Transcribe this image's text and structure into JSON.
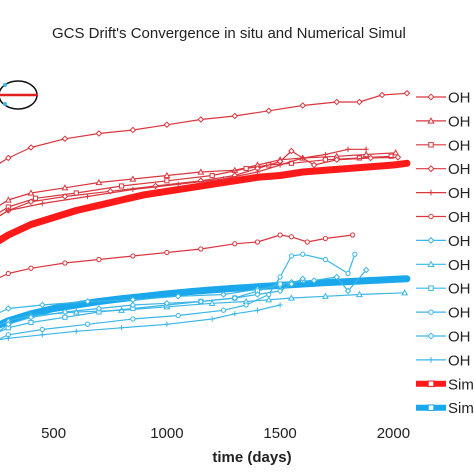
{
  "chart_data": {
    "type": "line",
    "title": "GCS Drift's Convergence in situ and Numerical Simul",
    "xlabel": "time (days)",
    "xlim": [
      250,
      2100
    ],
    "ylim": [
      0,
      1
    ],
    "x_ticks": [
      500,
      1000,
      1500,
      2000
    ],
    "colors": {
      "in_situ_red": "#d9363e",
      "in_situ_blue": "#3bb6e6",
      "sim_red": "#ff1a1a",
      "sim_blue": "#1aa7ec"
    },
    "series": [
      {
        "name": "OH",
        "color": "#d9363e",
        "marker": "diamond",
        "width": 1.2,
        "x": [
          250,
          300,
          400,
          550,
          700,
          850,
          1000,
          1150,
          1300,
          1450,
          1600,
          1750,
          1850,
          1950,
          2060
        ],
        "y": [
          0.7,
          0.72,
          0.75,
          0.775,
          0.79,
          0.8,
          0.815,
          0.83,
          0.84,
          0.855,
          0.87,
          0.88,
          0.88,
          0.9,
          0.905
        ]
      },
      {
        "name": "OH",
        "color": "#d9363e",
        "marker": "triangle",
        "width": 1.2,
        "x": [
          250,
          300,
          400,
          550,
          700,
          850,
          1000,
          1150,
          1300,
          1400,
          1500,
          1600,
          1750,
          1880,
          2010
        ],
        "y": [
          0.58,
          0.6,
          0.62,
          0.635,
          0.65,
          0.66,
          0.67,
          0.68,
          0.685,
          0.7,
          0.715,
          0.72,
          0.725,
          0.73,
          0.735
        ]
      },
      {
        "name": "OH",
        "color": "#d9363e",
        "marker": "square",
        "width": 1.2,
        "x": [
          250,
          300,
          420,
          600,
          800,
          1000,
          1200,
          1350,
          1450,
          1550,
          1700,
          1850,
          1990
        ],
        "y": [
          0.56,
          0.58,
          0.605,
          0.62,
          0.64,
          0.655,
          0.67,
          0.69,
          0.7,
          0.705,
          0.715,
          0.72,
          0.725
        ]
      },
      {
        "name": "OH",
        "color": "#d9363e",
        "marker": "diamond",
        "width": 1.2,
        "x": [
          250,
          300,
          400,
          550,
          750,
          950,
          1150,
          1300,
          1400,
          1500,
          1550,
          1650,
          1750,
          1900,
          2020
        ],
        "y": [
          0.55,
          0.57,
          0.595,
          0.61,
          0.625,
          0.64,
          0.655,
          0.67,
          0.69,
          0.71,
          0.74,
          0.7,
          0.715,
          0.72,
          0.722
        ]
      },
      {
        "name": "OH",
        "color": "#d9363e",
        "marker": "plus",
        "width": 1.2,
        "x": [
          250,
          300,
          450,
          650,
          850,
          1050,
          1250,
          1400,
          1500,
          1600,
          1700,
          1800,
          1880
        ],
        "y": [
          0.55,
          0.57,
          0.59,
          0.61,
          0.63,
          0.645,
          0.66,
          0.68,
          0.7,
          0.72,
          0.73,
          0.745,
          0.745
        ]
      },
      {
        "name": "OH",
        "color": "#d9363e",
        "marker": "circle",
        "width": 1.2,
        "x": [
          250,
          300,
          400,
          550,
          700,
          850,
          1000,
          1150,
          1300,
          1400,
          1500,
          1550,
          1620,
          1700,
          1820
        ],
        "y": [
          0.375,
          0.39,
          0.405,
          0.42,
          0.43,
          0.44,
          0.45,
          0.46,
          0.475,
          0.48,
          0.5,
          0.495,
          0.48,
          0.49,
          0.5
        ]
      },
      {
        "name": "OH",
        "color": "#3bb6e6",
        "marker": "diamond",
        "width": 1.2,
        "x": [
          250,
          300,
          450,
          650,
          850,
          1050,
          1250,
          1400,
          1500,
          1550,
          1650,
          1750,
          1800,
          1880
        ],
        "y": [
          0.275,
          0.29,
          0.3,
          0.31,
          0.315,
          0.325,
          0.33,
          0.345,
          0.355,
          0.365,
          0.37,
          0.38,
          0.34,
          0.4
        ]
      },
      {
        "name": "OH",
        "color": "#3bb6e6",
        "marker": "triangle",
        "width": 1.2,
        "x": [
          250,
          300,
          400,
          600,
          800,
          1000,
          1200,
          1350,
          1450,
          1550,
          1700,
          1850,
          2050
        ],
        "y": [
          0.24,
          0.255,
          0.27,
          0.28,
          0.285,
          0.295,
          0.305,
          0.31,
          0.315,
          0.32,
          0.325,
          0.33,
          0.335
        ]
      },
      {
        "name": "OH",
        "color": "#3bb6e6",
        "marker": "square",
        "width": 1.2,
        "x": [
          250,
          300,
          400,
          550,
          700,
          850,
          1000,
          1150,
          1300,
          1400,
          1500,
          1600
        ],
        "y": [
          0.22,
          0.235,
          0.25,
          0.265,
          0.28,
          0.29,
          0.3,
          0.31,
          0.32,
          0.34,
          0.36,
          0.37
        ]
      },
      {
        "name": "OH",
        "color": "#3bb6e6",
        "marker": "circle",
        "width": 1.2,
        "x": [
          250,
          300,
          450,
          650,
          850,
          1050,
          1250,
          1350,
          1450,
          1500,
          1550,
          1600,
          1700,
          1800,
          1830
        ],
        "y": [
          0.2,
          0.215,
          0.23,
          0.245,
          0.26,
          0.27,
          0.285,
          0.3,
          0.33,
          0.38,
          0.44,
          0.445,
          0.43,
          0.39,
          0.445
        ]
      },
      {
        "name": "OH",
        "color": "#3bb6e6",
        "marker": "diamond",
        "width": 1.2,
        "x": [
          250,
          300,
          400,
          550,
          700,
          850,
          1000,
          1150,
          1300,
          1400,
          1500,
          1550,
          1600
        ],
        "y": [
          0.22,
          0.245,
          0.265,
          0.28,
          0.29,
          0.3,
          0.305,
          0.31,
          0.32,
          0.33,
          0.34,
          0.36,
          0.375
        ]
      },
      {
        "name": "OH",
        "color": "#3bb6e6",
        "marker": "plus",
        "width": 1.2,
        "x": [
          250,
          300,
          450,
          600,
          800,
          1000,
          1200,
          1300,
          1400,
          1500
        ],
        "y": [
          0.2,
          0.205,
          0.215,
          0.225,
          0.235,
          0.245,
          0.26,
          0.275,
          0.285,
          0.3
        ]
      },
      {
        "name": "Sim",
        "color": "#ff1a1a",
        "marker": "square",
        "width": 7,
        "x": [
          250,
          300,
          400,
          500,
          600,
          700,
          800,
          900,
          1000,
          1100,
          1200,
          1300,
          1400,
          1500,
          1600,
          1700,
          1800,
          1900,
          2000,
          2060
        ],
        "y": [
          0.48,
          0.5,
          0.53,
          0.55,
          0.57,
          0.585,
          0.6,
          0.615,
          0.625,
          0.635,
          0.645,
          0.655,
          0.665,
          0.67,
          0.68,
          0.685,
          0.69,
          0.695,
          0.7,
          0.705
        ]
      },
      {
        "name": "Sim",
        "color": "#1aa7ec",
        "marker": "square",
        "width": 7,
        "x": [
          250,
          300,
          400,
          500,
          600,
          700,
          800,
          900,
          1000,
          1100,
          1200,
          1300,
          1400,
          1500,
          1600,
          1700,
          1800,
          1900,
          2000,
          2060
        ],
        "y": [
          0.24,
          0.255,
          0.275,
          0.29,
          0.3,
          0.31,
          0.318,
          0.325,
          0.332,
          0.338,
          0.343,
          0.348,
          0.352,
          0.356,
          0.36,
          0.364,
          0.367,
          0.37,
          0.373,
          0.375
        ]
      }
    ]
  }
}
